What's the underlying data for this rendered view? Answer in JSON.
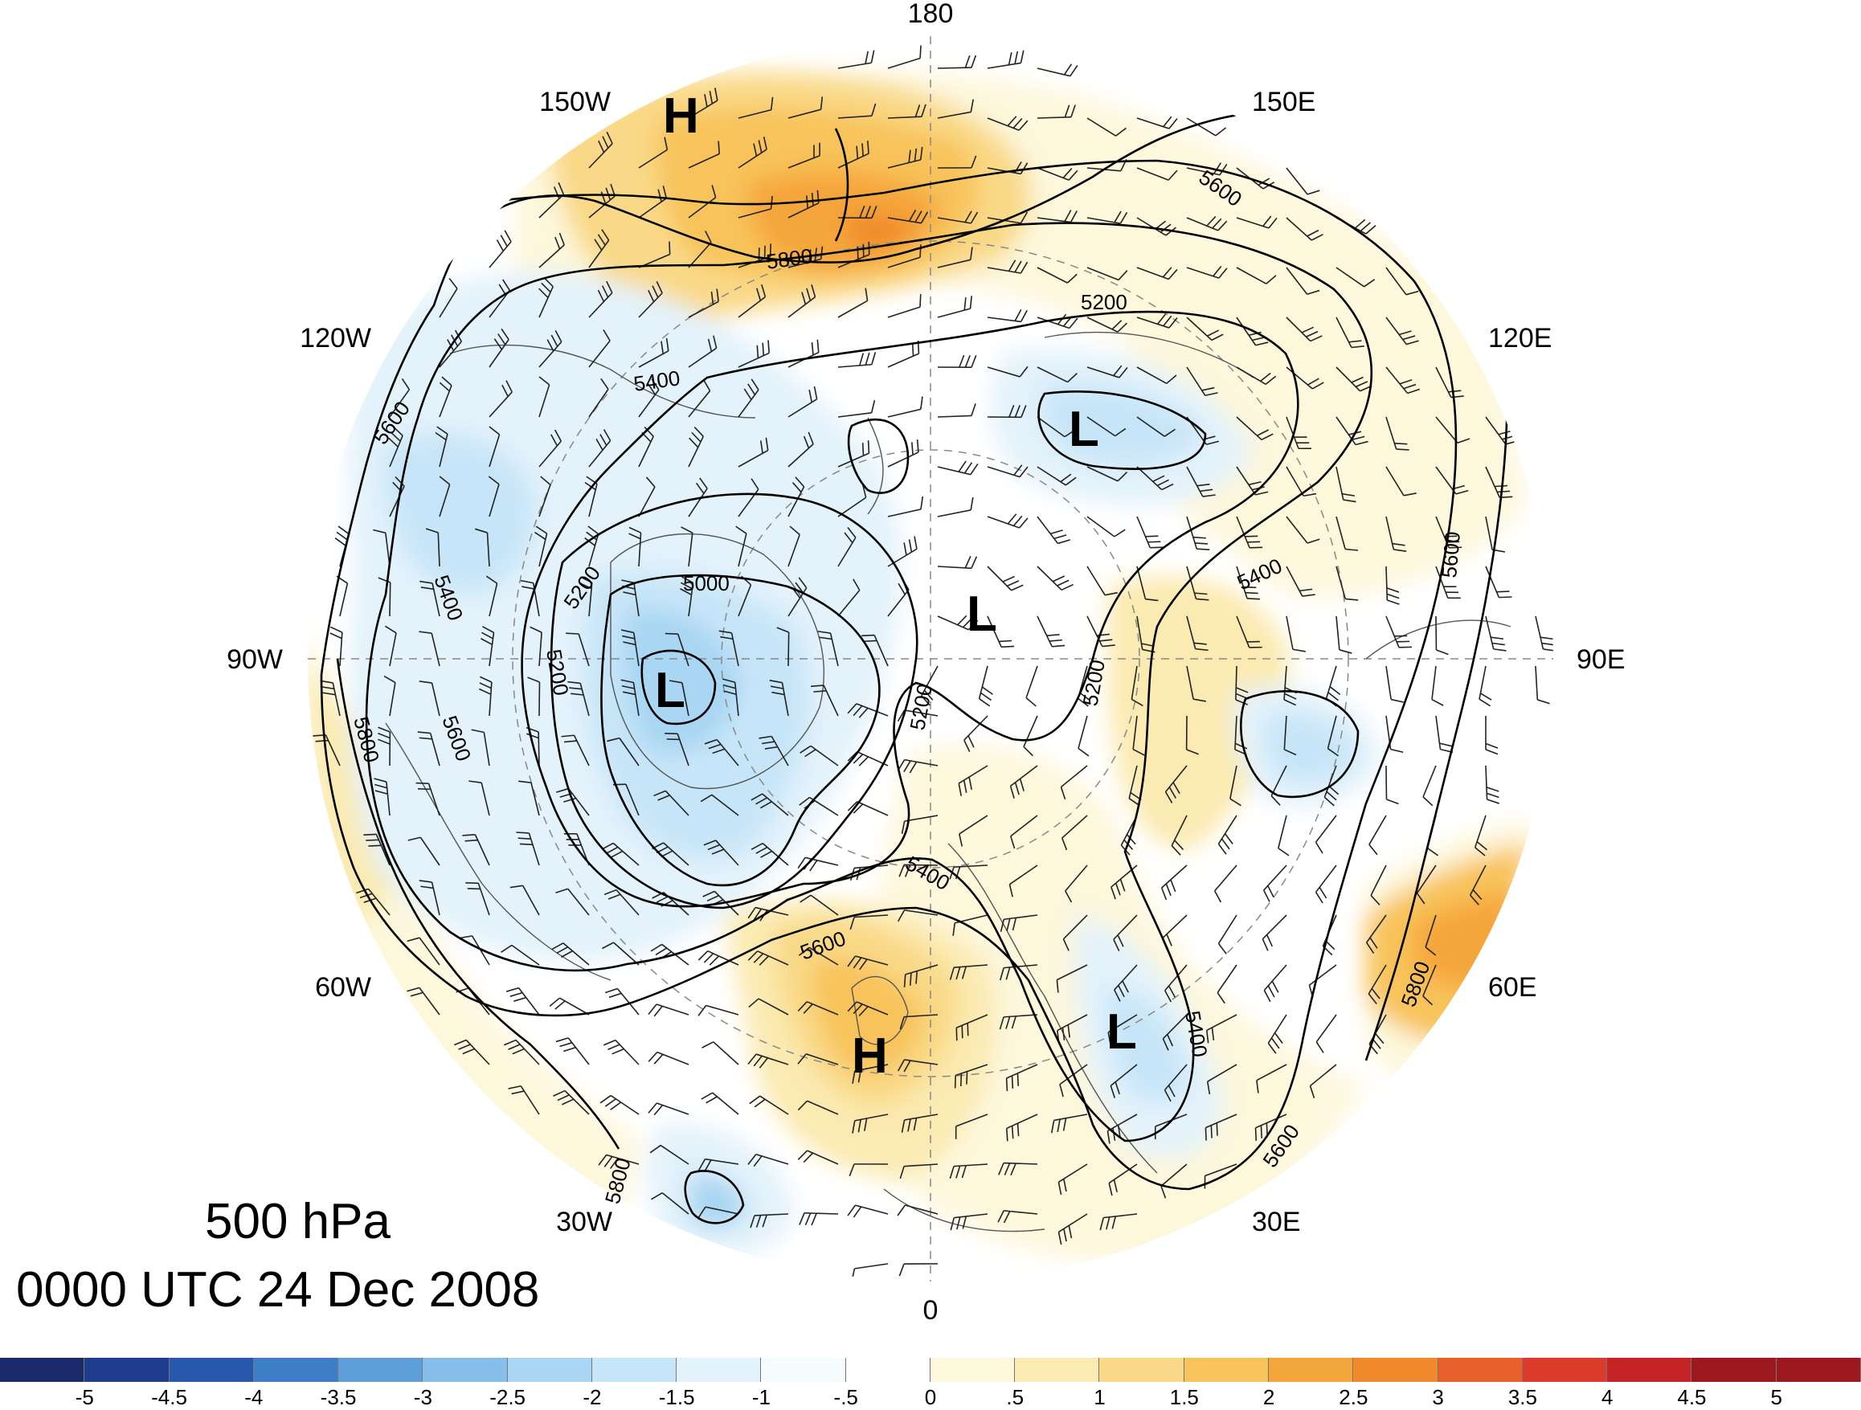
{
  "map": {
    "level": "500 hPa",
    "valid_time": "0000 UTC 24 Dec 2008",
    "longitude_labels": [
      "180",
      "150E",
      "120E",
      "90E",
      "60E",
      "30E",
      "0",
      "30W",
      "60W",
      "90W",
      "120W",
      "150W"
    ],
    "contour_labels": [
      "5000",
      "5200",
      "5200",
      "5200",
      "5200",
      "5200",
      "5400",
      "5400",
      "5400",
      "5400",
      "5400",
      "5600",
      "5600",
      "5600",
      "5600",
      "5600",
      "5600",
      "5800",
      "5800",
      "5800",
      "5800"
    ],
    "pressure_centers": [
      "H",
      "H",
      "L",
      "L",
      "L",
      "L"
    ]
  },
  "colorbar": {
    "colors": [
      "#1b2a6b",
      "#203c8c",
      "#2758ae",
      "#3d7ec9",
      "#5f9fd9",
      "#86c0ea",
      "#a8d6f3",
      "#c7e5f8",
      "#e3f2fb",
      "#f6fbfe",
      "#ffffff",
      "#fdf7dc",
      "#fbeab1",
      "#f9d987",
      "#f8c35a",
      "#f5a63a",
      "#f08a2c",
      "#e8602c",
      "#dc3a2b",
      "#c42426",
      "#9c1a1f"
    ],
    "tick_labels": [
      "-5",
      "-4.5",
      "-4",
      "-3.5",
      "-3",
      "-2.5",
      "-2",
      "-1.5",
      "-1",
      "-.5",
      "0",
      ".5",
      "1",
      "1.5",
      "2",
      "2.5",
      "3",
      "3.5",
      "4",
      "4.5",
      "5"
    ]
  }
}
